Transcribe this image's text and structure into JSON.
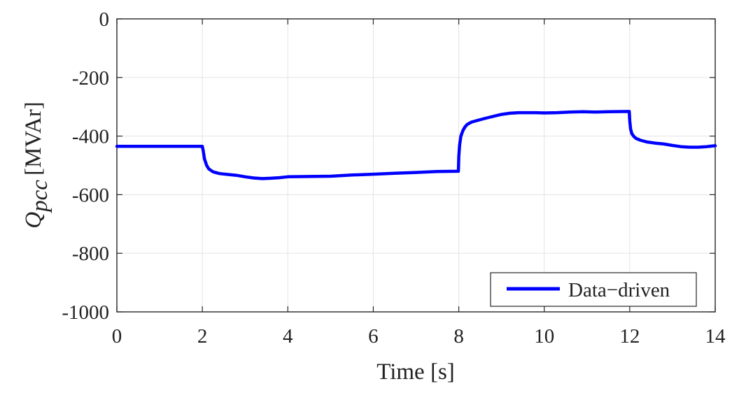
{
  "chart_data": {
    "type": "line",
    "xlabel": "Time [s]",
    "ylabel_main": "Q",
    "ylabel_sub": "pcc",
    "ylabel_unit": "[MVAr]",
    "xlim": [
      0,
      14
    ],
    "ylim": [
      -1000,
      0
    ],
    "xticks": [
      0,
      2,
      4,
      6,
      8,
      10,
      12,
      14
    ],
    "yticks": [
      0,
      -200,
      -400,
      -600,
      -800,
      -1000
    ],
    "grid": true,
    "legend_position": "bottom-right",
    "series": [
      {
        "name": "Data−driven",
        "color": "#0000ff",
        "x": [
          0,
          2.0,
          2.02,
          2.05,
          2.1,
          2.15,
          2.25,
          2.4,
          2.6,
          2.8,
          3.0,
          3.2,
          3.4,
          3.6,
          3.8,
          4.0,
          4.5,
          5.0,
          5.5,
          6.0,
          6.5,
          7.0,
          7.5,
          7.99,
          8.0,
          8.02,
          8.05,
          8.1,
          8.15,
          8.2,
          8.3,
          8.45,
          8.6,
          8.8,
          9.0,
          9.2,
          9.4,
          9.6,
          9.8,
          10.0,
          10.3,
          10.6,
          10.9,
          11.2,
          11.5,
          11.99,
          12.0,
          12.02,
          12.05,
          12.1,
          12.15,
          12.25,
          12.4,
          12.6,
          12.8,
          13.0,
          13.2,
          13.4,
          13.6,
          13.8,
          14.0
        ],
        "y": [
          -435,
          -435,
          -450,
          -478,
          -500,
          -512,
          -522,
          -528,
          -531,
          -534,
          -539,
          -543,
          -545,
          -544,
          -542,
          -539,
          -538,
          -537,
          -533,
          -530,
          -527,
          -524,
          -521,
          -520,
          -470,
          -430,
          -400,
          -380,
          -368,
          -360,
          -352,
          -346,
          -340,
          -333,
          -326,
          -322,
          -320,
          -320,
          -320,
          -321,
          -320,
          -318,
          -317,
          -318,
          -317,
          -316,
          -348,
          -376,
          -392,
          -402,
          -408,
          -414,
          -420,
          -424,
          -427,
          -432,
          -436,
          -438,
          -438,
          -436,
          -433
        ]
      }
    ]
  }
}
